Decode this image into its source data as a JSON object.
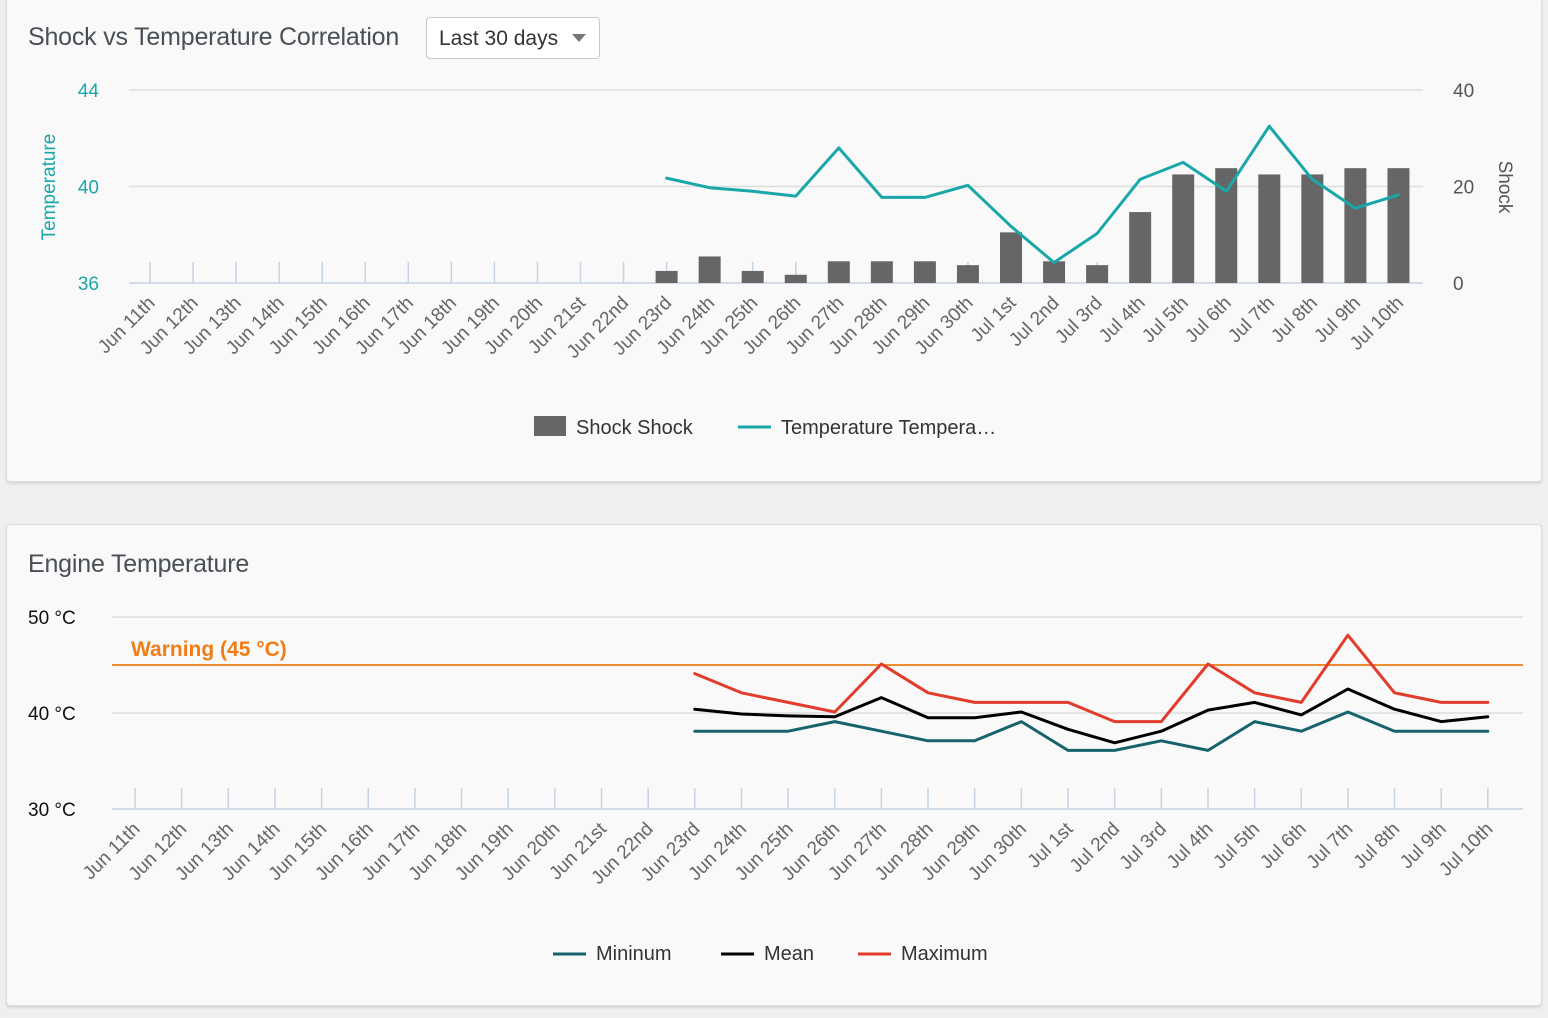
{
  "shock_panel": {
    "title": "Shock vs Temperature Correlation",
    "range": {
      "selected": "Last 30 days"
    }
  },
  "engine_panel": {
    "title": "Engine Temperature"
  },
  "chart_data": [
    {
      "type": "bar+line",
      "title": "Shock vs Temperature Correlation",
      "categories": [
        "Jun 11th",
        "Jun 12th",
        "Jun 13th",
        "Jun 14th",
        "Jun 15th",
        "Jun 16th",
        "Jun 17th",
        "Jun 18th",
        "Jun 19th",
        "Jun 20th",
        "Jun 21st",
        "Jun 22nd",
        "Jun 23rd",
        "Jun 24th",
        "Jun 25th",
        "Jun 26th",
        "Jun 27th",
        "Jun 28th",
        "Jun 29th",
        "Jun 30th",
        "Jul 1st",
        "Jul 2nd",
        "Jul 3rd",
        "Jul 4th",
        "Jul 5th",
        "Jul 6th",
        "Jul 7th",
        "Jul 8th",
        "Jul 9th",
        "Jul 10th"
      ],
      "y_left": {
        "label": "Temperature",
        "range": [
          36,
          44
        ],
        "ticks": [
          "36",
          "40",
          "44"
        ],
        "color": "#1aa7a9"
      },
      "y_right": {
        "label": "Shock",
        "range": [
          0,
          40
        ],
        "ticks": [
          "0",
          "20",
          "40"
        ],
        "color": "#555555"
      },
      "series": [
        {
          "name": "Shock Shock",
          "type": "bar",
          "axis": "right",
          "color": "#666666",
          "values": [
            null,
            null,
            null,
            null,
            null,
            null,
            null,
            null,
            null,
            null,
            null,
            null,
            2.5,
            5.5,
            2.5,
            1.7,
            4.5,
            4.5,
            4.5,
            3.7,
            10.5,
            4.5,
            3.7,
            14.7,
            22.5,
            23.8,
            22.5,
            22.5,
            23.8,
            23.8
          ]
        },
        {
          "name": "Temperature Tempera…",
          "type": "line",
          "axis": "left",
          "color": "#1aa7a9",
          "values": [
            null,
            null,
            null,
            null,
            null,
            null,
            null,
            null,
            null,
            null,
            null,
            null,
            40.35,
            39.95,
            39.8,
            39.6,
            41.6,
            39.55,
            39.55,
            40.05,
            38.35,
            36.85,
            38.05,
            40.3,
            41.0,
            39.8,
            42.5,
            40.3,
            39.1,
            39.65
          ]
        }
      ],
      "grid": true,
      "legend": "bottom-center"
    },
    {
      "type": "line",
      "title": "Engine Temperature",
      "categories": [
        "Jun 11th",
        "Jun 12th",
        "Jun 13th",
        "Jun 14th",
        "Jun 15th",
        "Jun 16th",
        "Jun 17th",
        "Jun 18th",
        "Jun 19th",
        "Jun 20th",
        "Jun 21st",
        "Jun 22nd",
        "Jun 23rd",
        "Jun 24th",
        "Jun 25th",
        "Jun 26th",
        "Jun 27th",
        "Jun 28th",
        "Jun 29th",
        "Jun 30th",
        "Jul 1st",
        "Jul 2nd",
        "Jul 3rd",
        "Jul 4th",
        "Jul 5th",
        "Jul 6th",
        "Jul 7th",
        "Jul 8th",
        "Jul 9th",
        "Jul 10th"
      ],
      "y": {
        "range": [
          30,
          50
        ],
        "ticks": [
          "30 °C",
          "40 °C",
          "50 °C"
        ]
      },
      "threshold": {
        "label": "Warning (45 °C)",
        "value": 45,
        "color": "#f07d16"
      },
      "series": [
        {
          "name": "Mininum",
          "color": "#16636d",
          "values": [
            null,
            null,
            null,
            null,
            null,
            null,
            null,
            null,
            null,
            null,
            null,
            null,
            38.1,
            38.1,
            38.1,
            39.1,
            38.1,
            37.1,
            37.1,
            39.1,
            36.1,
            36.1,
            37.1,
            36.1,
            39.1,
            38.1,
            40.1,
            38.1,
            38.1,
            38.1
          ]
        },
        {
          "name": "Mean",
          "color": "#000000",
          "values": [
            null,
            null,
            null,
            null,
            null,
            null,
            null,
            null,
            null,
            null,
            null,
            null,
            40.4,
            39.9,
            39.7,
            39.6,
            41.6,
            39.5,
            39.5,
            40.1,
            38.3,
            36.9,
            38.1,
            40.3,
            41.1,
            39.8,
            42.5,
            40.4,
            39.1,
            39.6
          ]
        },
        {
          "name": "Maximum",
          "color": "#e23c2c",
          "values": [
            null,
            null,
            null,
            null,
            null,
            null,
            null,
            null,
            null,
            null,
            null,
            null,
            44.1,
            42.1,
            41.1,
            40.1,
            45.1,
            42.1,
            41.1,
            41.1,
            41.1,
            39.1,
            39.1,
            45.1,
            42.1,
            41.1,
            48.1,
            42.1,
            41.1,
            41.1
          ]
        }
      ],
      "grid": true,
      "legend": "bottom-center"
    }
  ]
}
